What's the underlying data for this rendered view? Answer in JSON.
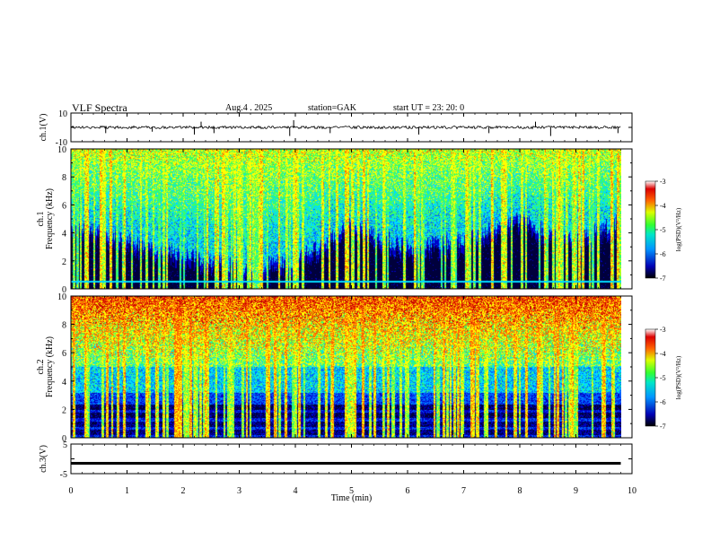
{
  "header": {
    "title": "VLF  Spectra",
    "date": "Aug.4   . 2025",
    "station": "station=GAK",
    "start": "start  UT  =    23: 20: 0"
  },
  "chart_data": [
    {
      "type": "line",
      "name": "ch1-waveform",
      "ylabel": "ch.1(V)",
      "ylim": [
        -10,
        10
      ],
      "yticks": [
        "10",
        "-10"
      ],
      "baseline": 0,
      "x_range_min": [
        0,
        9.8
      ],
      "spikes": [
        {
          "t": 0.62,
          "y": -4
        },
        {
          "t": 1.45,
          "y": -3
        },
        {
          "t": 2.2,
          "y": -5
        },
        {
          "t": 2.32,
          "y": 4
        },
        {
          "t": 2.55,
          "y": -4
        },
        {
          "t": 3.9,
          "y": -6
        },
        {
          "t": 3.97,
          "y": 5
        },
        {
          "t": 4.62,
          "y": -4
        },
        {
          "t": 6.2,
          "y": -5
        },
        {
          "t": 7.45,
          "y": -4
        },
        {
          "t": 8.28,
          "y": 4
        },
        {
          "t": 8.55,
          "y": -6
        },
        {
          "t": 9.75,
          "y": -4
        }
      ]
    },
    {
      "type": "heatmap",
      "name": "ch1-spectrogram",
      "ylabel": "ch.1",
      "ylabel2": "Frequency  (kHz)",
      "ylim": [
        0,
        10
      ],
      "yticks": [
        "0",
        "2",
        "4",
        "6",
        "8",
        "10"
      ],
      "x_range_min": [
        0,
        9.8
      ],
      "colorbar": {
        "label": "log(PSD)(V²/Hz)",
        "range": [
          -7,
          -3
        ],
        "ticks": [
          "-3",
          "-4",
          "-5",
          "-6",
          "-7"
        ]
      },
      "noise_floor_khz": [
        [
          0,
          4.5
        ],
        [
          1,
          3.5
        ],
        [
          2,
          2.5
        ],
        [
          3,
          1.6
        ],
        [
          4,
          2.0
        ],
        [
          5,
          4.6
        ],
        [
          6,
          3.0
        ],
        [
          7,
          3.6
        ],
        [
          8,
          5.0
        ],
        [
          9,
          3.4
        ],
        [
          9.8,
          5.0
        ]
      ],
      "line_freq_khz": 0.55
    },
    {
      "type": "heatmap",
      "name": "ch2-spectrogram",
      "ylabel": "ch.2",
      "ylabel2": "Frequency  (kHz)",
      "ylim": [
        0,
        10
      ],
      "yticks": [
        "0",
        "2",
        "4",
        "6",
        "8",
        "10"
      ],
      "x_range_min": [
        0,
        9.8
      ],
      "colorbar": {
        "label": "log(PSD)(V²/Hz)",
        "range": [
          -7,
          -3
        ],
        "ticks": [
          "-3",
          "-4",
          "-5",
          "-6",
          "-7"
        ]
      }
    },
    {
      "type": "line",
      "name": "ch3-waveform",
      "ylabel": "ch.3(V)",
      "ylim": [
        -5,
        5
      ],
      "yticks": [
        "5",
        "0",
        "-5"
      ],
      "level": -1.5,
      "x_range_min": [
        0,
        9.8
      ]
    }
  ],
  "xaxis": {
    "label": "Time  (min)",
    "range": [
      0,
      10
    ],
    "ticks": [
      "0",
      "1",
      "2",
      "3",
      "4",
      "5",
      "6",
      "7",
      "8",
      "9",
      "10"
    ]
  },
  "colors": {
    "colormap": [
      "#00003c",
      "#0000c8",
      "#0064ff",
      "#00dcff",
      "#3cff64",
      "#ffff00",
      "#ff6400",
      "#c80000"
    ]
  }
}
